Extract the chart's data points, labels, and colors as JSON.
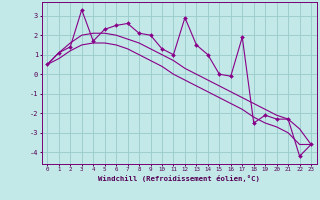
{
  "xlabel": "Windchill (Refroidissement éolien,°C)",
  "bg_color": "#c2e8e8",
  "grid_color": "#9ecece",
  "line_color": "#880088",
  "x_data": [
    0,
    1,
    2,
    3,
    4,
    5,
    6,
    7,
    8,
    9,
    10,
    11,
    12,
    13,
    14,
    15,
    16,
    17,
    18,
    19,
    20,
    21,
    22,
    23
  ],
  "y_main": [
    0.5,
    1.1,
    1.4,
    3.3,
    1.7,
    2.3,
    2.5,
    2.6,
    2.1,
    2.0,
    1.3,
    1.0,
    2.9,
    1.5,
    1.0,
    0.0,
    -0.1,
    1.9,
    -2.5,
    -2.1,
    -2.3,
    -2.3,
    -4.2,
    -3.6
  ],
  "y_line1": [
    0.5,
    1.1,
    1.6,
    2.0,
    2.1,
    2.1,
    2.0,
    1.8,
    1.6,
    1.3,
    1.0,
    0.7,
    0.3,
    0.0,
    -0.3,
    -0.6,
    -0.9,
    -1.2,
    -1.5,
    -1.8,
    -2.1,
    -2.3,
    -2.8,
    -3.6
  ],
  "y_line2": [
    0.5,
    0.8,
    1.2,
    1.5,
    1.6,
    1.6,
    1.5,
    1.3,
    1.0,
    0.7,
    0.4,
    0.0,
    -0.3,
    -0.6,
    -0.9,
    -1.2,
    -1.5,
    -1.8,
    -2.2,
    -2.5,
    -2.7,
    -3.0,
    -3.6,
    -3.6
  ],
  "ylim": [
    -4.6,
    3.7
  ],
  "xlim": [
    -0.5,
    23.5
  ],
  "yticks": [
    -4,
    -3,
    -2,
    -1,
    0,
    1,
    2,
    3
  ],
  "xticks": [
    0,
    1,
    2,
    3,
    4,
    5,
    6,
    7,
    8,
    9,
    10,
    11,
    12,
    13,
    14,
    15,
    16,
    17,
    18,
    19,
    20,
    21,
    22,
    23
  ]
}
